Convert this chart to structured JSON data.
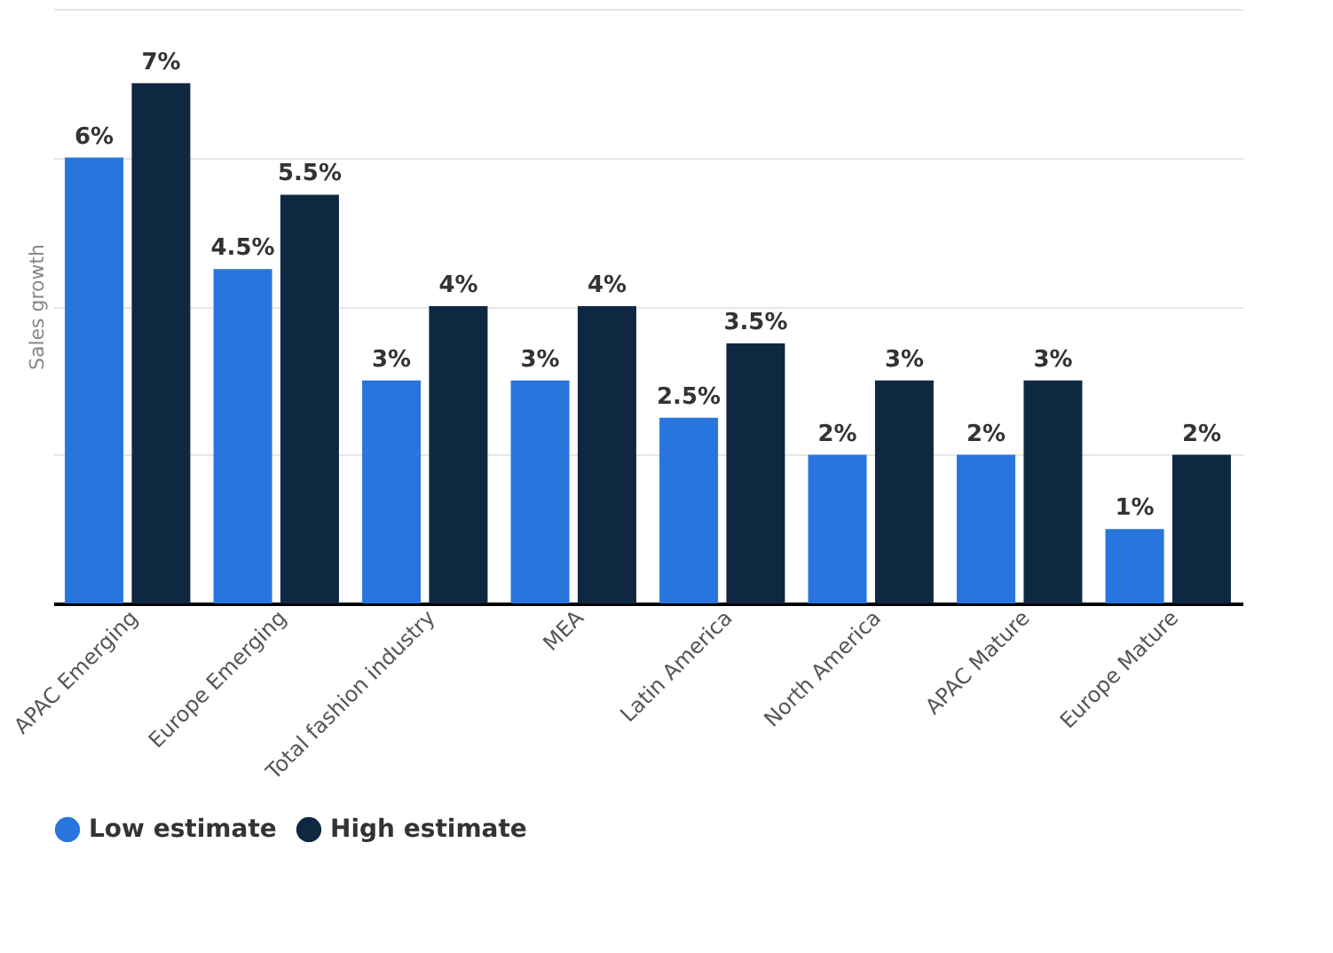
{
  "chart_data": {
    "type": "bar",
    "ylabel": "Sales growth",
    "categories": [
      "APAC Emerging",
      "Europe Emerging",
      "Total fashion industry",
      "MEA",
      "Latin America",
      "North America",
      "APAC Mature",
      "Europe Mature"
    ],
    "series": [
      {
        "name": "Low estimate",
        "color": "#2876dd",
        "values": [
          6,
          4.5,
          3,
          3,
          2.5,
          2,
          2,
          1
        ],
        "value_labels": [
          "6%",
          "4.5%",
          "3%",
          "3%",
          "2.5%",
          "2%",
          "2%",
          "1%"
        ]
      },
      {
        "name": "High estimate",
        "color": "#0f2841",
        "values": [
          7,
          5.5,
          4,
          4,
          3.5,
          3,
          3,
          2
        ],
        "value_labels": [
          "7%",
          "5.5%",
          "4%",
          "4%",
          "3.5%",
          "3%",
          "3%",
          "2%"
        ]
      }
    ],
    "ylim": [
      0,
      8
    ],
    "yticks": [
      {
        "value": 0,
        "label": null
      },
      {
        "value": 2,
        "label": null
      },
      {
        "value": 4,
        "label": null
      },
      {
        "value": 6,
        "label": null
      },
      {
        "value": 8,
        "label": null
      }
    ],
    "tick_labels": "x",
    "grid": "y",
    "legend": "bottom"
  }
}
